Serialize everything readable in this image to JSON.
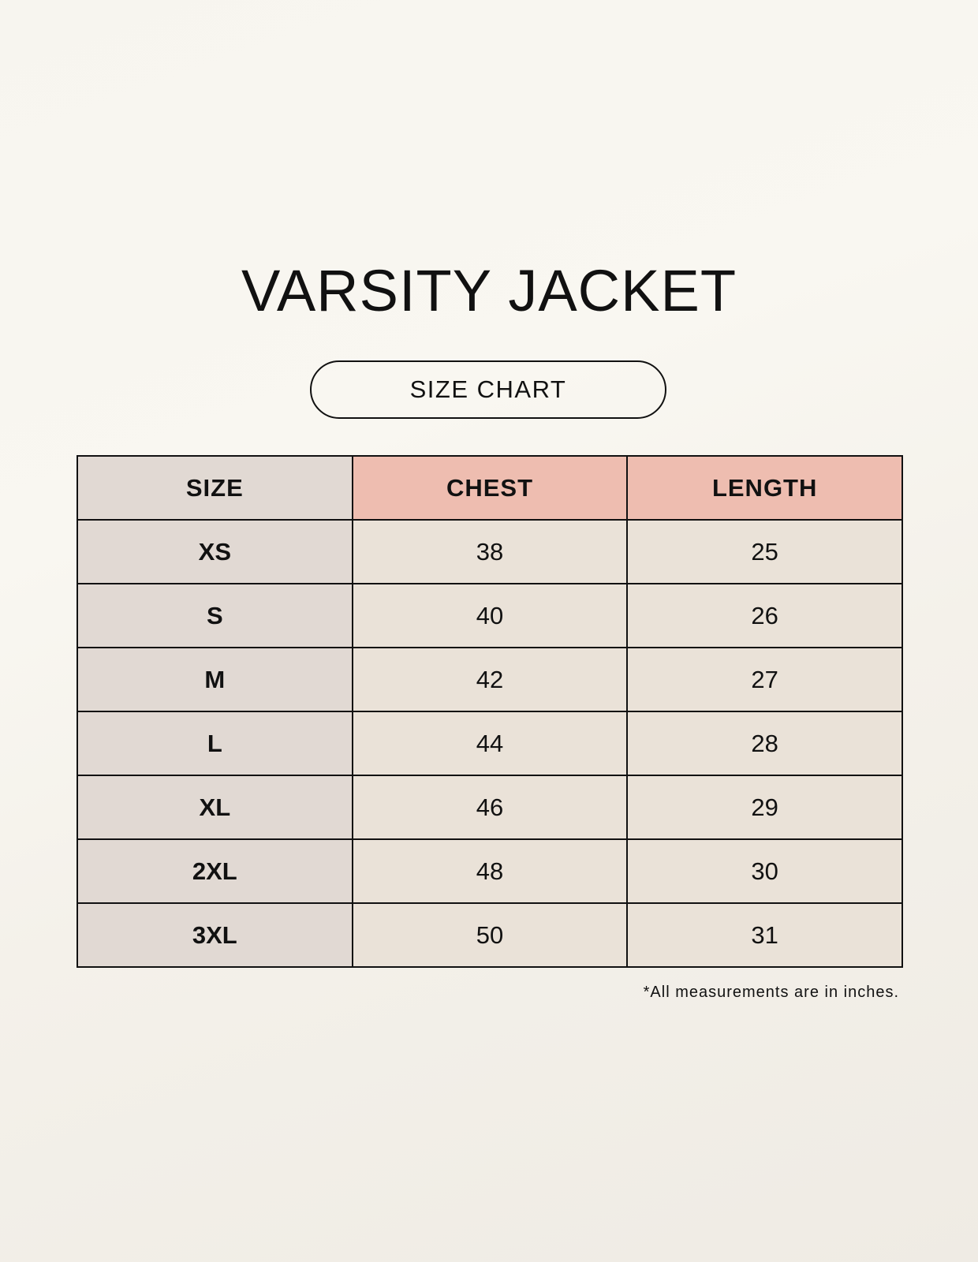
{
  "title": "VARSITY JACKET",
  "subtitle": "SIZE CHART",
  "table": {
    "headers": [
      "SIZE",
      "CHEST",
      "LENGTH"
    ],
    "rows": [
      [
        "XS",
        "38",
        "25"
      ],
      [
        "S",
        "40",
        "26"
      ],
      [
        "M",
        "42",
        "27"
      ],
      [
        "L",
        "44",
        "28"
      ],
      [
        "XL",
        "46",
        "29"
      ],
      [
        "2XL",
        "48",
        "30"
      ],
      [
        "3XL",
        "50",
        "31"
      ]
    ]
  },
  "footnote": "*All measurements are in inches.",
  "colors": {
    "size_column": "#e1d9d3",
    "header_accent": "#eebdb0",
    "cell": "#eae2d8"
  }
}
